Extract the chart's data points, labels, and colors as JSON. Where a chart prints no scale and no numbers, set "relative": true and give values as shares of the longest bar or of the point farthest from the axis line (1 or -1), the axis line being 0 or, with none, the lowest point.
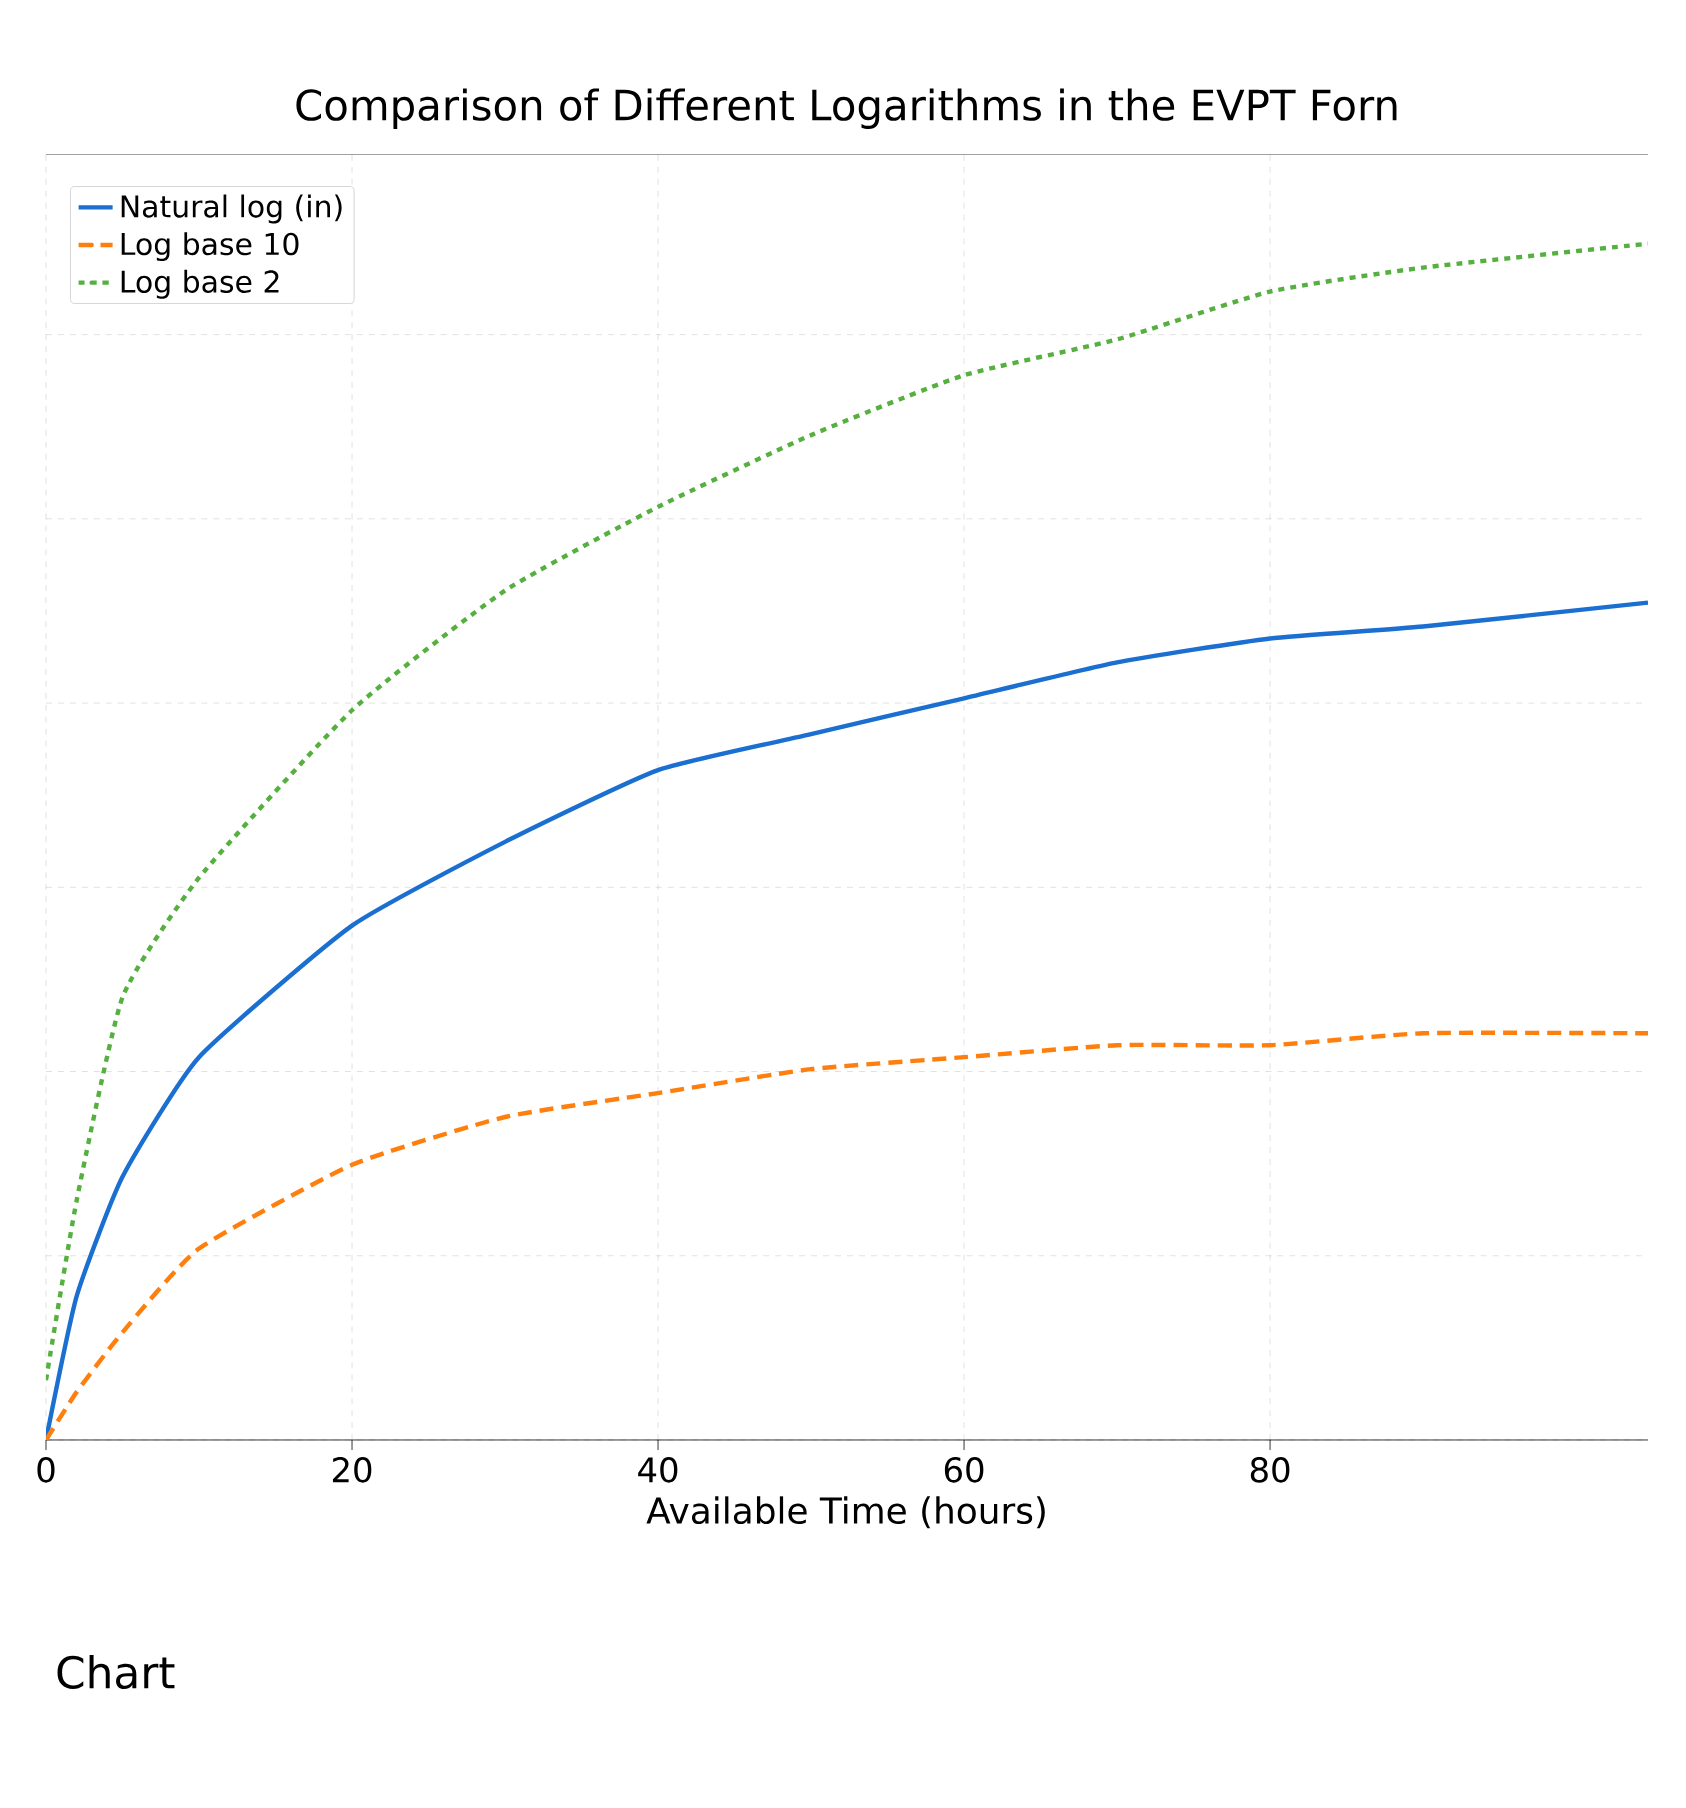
{
  "chart_data": {
    "type": "line",
    "title": "Comparison of Different Logarithms in the EVPT Forn",
    "xlabel": "Available Time (hours)",
    "annotations": [
      "Chart"
    ],
    "x": [
      0,
      2,
      5,
      10,
      20,
      30,
      40,
      50,
      60,
      70,
      80,
      90,
      104.7
    ],
    "xlim": [
      0,
      104.7
    ],
    "xticks": [
      0,
      20,
      40,
      60,
      80
    ],
    "relative": true,
    "grid": true,
    "legend": "top left",
    "series": [
      {
        "name": "Natural log (in)",
        "color": "#1a6fd0",
        "line_style": "solid",
        "values": [
          0,
          0.12,
          0.22,
          0.32,
          0.43,
          0.5,
          0.56,
          0.59,
          0.62,
          0.65,
          0.67,
          0.68,
          0.7
        ]
      },
      {
        "name": "Log base 10",
        "color": "#ff7f0e",
        "line_style": "dashed",
        "values": [
          0,
          0.04,
          0.09,
          0.16,
          0.23,
          0.27,
          0.29,
          0.31,
          0.32,
          0.33,
          0.33,
          0.34,
          0.34
        ]
      },
      {
        "name": "Log base 2",
        "color": "#55b03f",
        "line_style": "dotted",
        "values": [
          0.05,
          0.2,
          0.37,
          0.47,
          0.61,
          0.71,
          0.78,
          0.84,
          0.89,
          0.92,
          0.96,
          0.98,
          1
        ]
      }
    ]
  }
}
